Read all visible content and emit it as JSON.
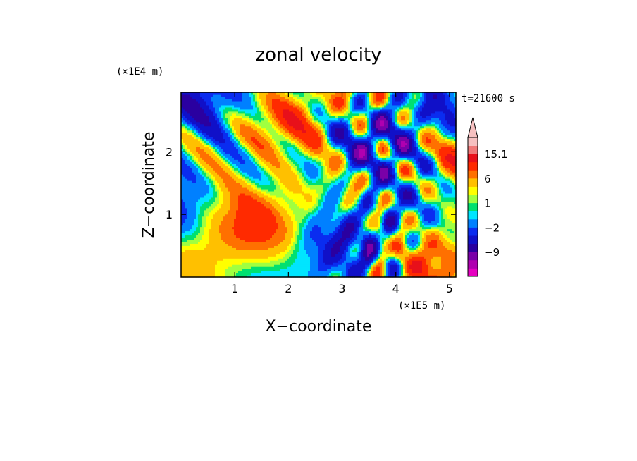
{
  "chart_data": {
    "type": "heatmap",
    "title": "zonal velocity",
    "xlabel": "X−coordinate",
    "ylabel": "Z−coordinate",
    "x_unit_label": "(×1E5 m)",
    "y_unit_label": "(×1E4 m)",
    "time_label": "t=21600 s",
    "xlim": [
      0,
      5.12
    ],
    "ylim": [
      0,
      2.95
    ],
    "x_ticks": [
      1,
      2,
      3,
      4,
      5
    ],
    "y_ticks": [
      1,
      2
    ],
    "x_tick_labels": [
      "1",
      "2",
      "3",
      "4",
      "5"
    ],
    "y_tick_labels": [
      "1",
      "2"
    ],
    "grid": false,
    "colorbar": {
      "extend": "max",
      "levels": [
        -18,
        -15,
        -12,
        -9,
        -6,
        -4,
        -2,
        -1,
        0,
        1,
        2,
        4,
        6,
        9,
        12,
        15.1
      ],
      "colors": [
        "#e600c0",
        "#b000b0",
        "#7a00a8",
        "#2a00a0",
        "#1010c8",
        "#0a2cf0",
        "#0080ff",
        "#00e5ff",
        "#00e070",
        "#a0ff40",
        "#ffff00",
        "#ffc000",
        "#ff7000",
        "#ff2a00",
        "#e8101a",
        "#f07878",
        "#f6c0c0"
      ],
      "tick_labels": [
        "15.1",
        "6",
        "1",
        "−2",
        "−9"
      ]
    }
  }
}
